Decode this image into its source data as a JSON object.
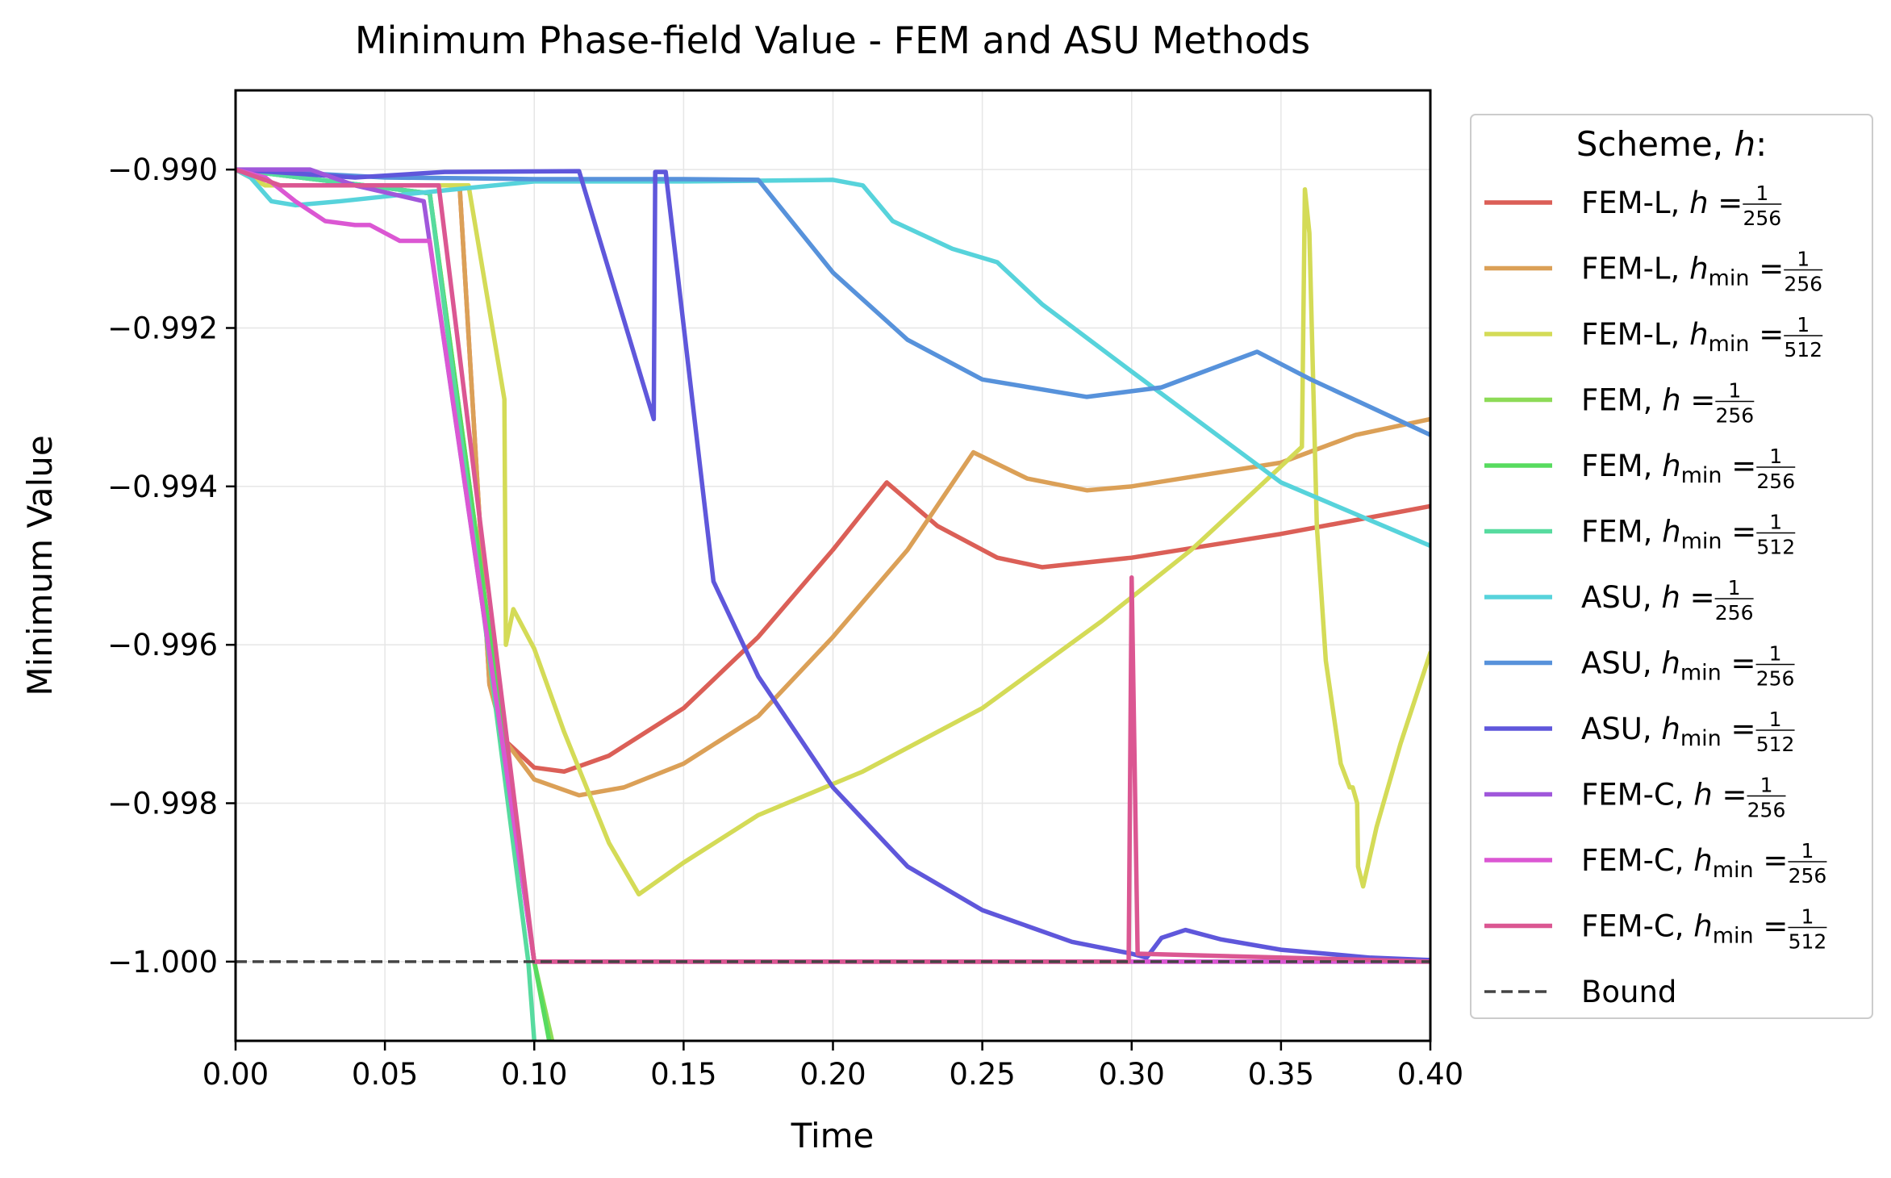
{
  "chart_data": {
    "type": "line",
    "title": "Minimum Phase-field Value - FEM and ASU Methods",
    "xlabel": "Time",
    "ylabel": "Minimum Value",
    "xlim": [
      0.0,
      0.4
    ],
    "ylim": [
      -1.001,
      -0.989
    ],
    "grid": true,
    "x_ticks": [
      0.0,
      0.05,
      0.1,
      0.15,
      0.2,
      0.25,
      0.3,
      0.35,
      0.4
    ],
    "x_tick_labels": [
      "0.00",
      "0.05",
      "0.10",
      "0.15",
      "0.20",
      "0.25",
      "0.30",
      "0.35",
      "0.40"
    ],
    "y_ticks": [
      -0.99,
      -0.992,
      -0.994,
      -0.996,
      -0.998,
      -1.0
    ],
    "y_tick_labels": [
      "−0.990",
      "−0.992",
      "−0.994",
      "−0.996",
      "−0.998",
      "−1.000"
    ],
    "legend": {
      "title_text": "Scheme, ",
      "title_math": "h",
      "title_suffix": ":",
      "placement": "outside-right",
      "bound_label": "Bound"
    },
    "bound": {
      "y": -1.0,
      "color": "#444444",
      "style": "dashed"
    },
    "series": [
      {
        "name": "FEM-L, h = 1/256",
        "scheme": "FEM-L",
        "hvar": "h",
        "sub": "",
        "num": "1",
        "den": "256",
        "color": "#db5f57",
        "points": [
          [
            0,
            -0.99
          ],
          [
            0.01,
            -0.9902
          ],
          [
            0.06,
            -0.9902
          ],
          [
            0.075,
            -0.9902
          ],
          [
            0.085,
            -0.9965
          ],
          [
            0.09,
            -0.9972
          ],
          [
            0.1,
            -0.99755
          ],
          [
            0.11,
            -0.9976
          ],
          [
            0.125,
            -0.9974
          ],
          [
            0.15,
            -0.9968
          ],
          [
            0.175,
            -0.9959
          ],
          [
            0.2,
            -0.9948
          ],
          [
            0.218,
            -0.99395
          ],
          [
            0.235,
            -0.9945
          ],
          [
            0.255,
            -0.9949
          ],
          [
            0.27,
            -0.99502
          ],
          [
            0.3,
            -0.9949
          ],
          [
            0.35,
            -0.9946
          ],
          [
            0.4,
            -0.99425
          ]
        ]
      },
      {
        "name": "FEM-L, h_min = 1/256",
        "scheme": "FEM-L",
        "hvar": "h",
        "sub": "min",
        "num": "1",
        "den": "256",
        "color": "#dba057",
        "points": [
          [
            0,
            -0.99
          ],
          [
            0.01,
            -0.9902
          ],
          [
            0.06,
            -0.9902
          ],
          [
            0.075,
            -0.9902
          ],
          [
            0.085,
            -0.9965
          ],
          [
            0.09,
            -0.9972
          ],
          [
            0.1,
            -0.9977
          ],
          [
            0.115,
            -0.9979
          ],
          [
            0.13,
            -0.9978
          ],
          [
            0.15,
            -0.9975
          ],
          [
            0.175,
            -0.9969
          ],
          [
            0.2,
            -0.9959
          ],
          [
            0.225,
            -0.9948
          ],
          [
            0.247,
            -0.99357
          ],
          [
            0.265,
            -0.9939
          ],
          [
            0.285,
            -0.99405
          ],
          [
            0.3,
            -0.994
          ],
          [
            0.35,
            -0.9937
          ],
          [
            0.375,
            -0.99335
          ],
          [
            0.4,
            -0.99315
          ]
        ]
      },
      {
        "name": "FEM-L, h_min = 1/512",
        "scheme": "FEM-L",
        "hvar": "h",
        "sub": "min",
        "num": "1",
        "den": "512",
        "color": "#d4db57",
        "points": [
          [
            0,
            -0.99
          ],
          [
            0.01,
            -0.9902
          ],
          [
            0.05,
            -0.9902
          ],
          [
            0.078,
            -0.9902
          ],
          [
            0.09,
            -0.9929
          ],
          [
            0.0905,
            -0.996
          ],
          [
            0.093,
            -0.99555
          ],
          [
            0.1,
            -0.99605
          ],
          [
            0.11,
            -0.9971
          ],
          [
            0.125,
            -0.9985
          ],
          [
            0.135,
            -0.99915
          ],
          [
            0.15,
            -0.99875
          ],
          [
            0.175,
            -0.99815
          ],
          [
            0.21,
            -0.9976
          ],
          [
            0.25,
            -0.9968
          ],
          [
            0.29,
            -0.9957
          ],
          [
            0.32,
            -0.9948
          ],
          [
            0.34,
            -0.9941
          ],
          [
            0.357,
            -0.9935
          ],
          [
            0.358,
            -0.99025
          ],
          [
            0.3595,
            -0.9908
          ],
          [
            0.362,
            -0.9945
          ],
          [
            0.365,
            -0.9962
          ],
          [
            0.37,
            -0.9975
          ],
          [
            0.373,
            -0.9978
          ],
          [
            0.374,
            -0.9978
          ],
          [
            0.3755,
            -0.998
          ],
          [
            0.3758,
            -0.9988
          ],
          [
            0.3775,
            -0.99905
          ],
          [
            0.382,
            -0.9983
          ],
          [
            0.39,
            -0.99725
          ],
          [
            0.4,
            -0.9961
          ]
        ]
      },
      {
        "name": "FEM, h = 1/256",
        "scheme": "FEM",
        "hvar": "h",
        "sub": "",
        "num": "1",
        "den": "256",
        "color": "#8ddb57",
        "points": [
          [
            0,
            -0.99
          ],
          [
            0.065,
            -0.9903
          ],
          [
            0.1,
            -1.0
          ],
          [
            0.106,
            -1.001
          ]
        ]
      },
      {
        "name": "FEM, h_min = 1/256",
        "scheme": "FEM",
        "hvar": "h",
        "sub": "min",
        "num": "1",
        "den": "256",
        "color": "#57db5f",
        "points": [
          [
            0,
            -0.99
          ],
          [
            0.065,
            -0.9903
          ],
          [
            0.1,
            -1.0
          ],
          [
            0.105,
            -1.001
          ]
        ]
      },
      {
        "name": "FEM, h_min = 1/512",
        "scheme": "FEM",
        "hvar": "h",
        "sub": "min",
        "num": "1",
        "den": "512",
        "color": "#57db9f",
        "points": [
          [
            0,
            -0.99
          ],
          [
            0.065,
            -0.9903
          ],
          [
            0.098,
            -1.0
          ],
          [
            0.1,
            -1.001
          ]
        ]
      },
      {
        "name": "ASU, h = 1/256",
        "scheme": "ASU",
        "hvar": "h",
        "sub": "",
        "num": "1",
        "den": "256",
        "color": "#57d3db",
        "points": [
          [
            0,
            -0.99
          ],
          [
            0.005,
            -0.9901
          ],
          [
            0.012,
            -0.9904
          ],
          [
            0.02,
            -0.99045
          ],
          [
            0.035,
            -0.9904
          ],
          [
            0.06,
            -0.9903
          ],
          [
            0.1,
            -0.99015
          ],
          [
            0.15,
            -0.99015
          ],
          [
            0.2,
            -0.99013
          ],
          [
            0.21,
            -0.9902
          ],
          [
            0.22,
            -0.99065
          ],
          [
            0.24,
            -0.991
          ],
          [
            0.255,
            -0.99117
          ],
          [
            0.27,
            -0.9917
          ],
          [
            0.3,
            -0.99255
          ],
          [
            0.35,
            -0.99395
          ],
          [
            0.4,
            -0.99475
          ]
        ]
      },
      {
        "name": "ASU, h_min = 1/256",
        "scheme": "ASU",
        "hvar": "h",
        "sub": "min",
        "num": "1",
        "den": "256",
        "color": "#5792db",
        "points": [
          [
            0,
            -0.99
          ],
          [
            0.05,
            -0.9901
          ],
          [
            0.1,
            -0.99012
          ],
          [
            0.15,
            -0.99012
          ],
          [
            0.175,
            -0.99013
          ],
          [
            0.2,
            -0.9913
          ],
          [
            0.225,
            -0.99215
          ],
          [
            0.25,
            -0.99265
          ],
          [
            0.285,
            -0.99287
          ],
          [
            0.31,
            -0.99275
          ],
          [
            0.342,
            -0.9923
          ],
          [
            0.36,
            -0.99265
          ],
          [
            0.38,
            -0.993
          ],
          [
            0.4,
            -0.99335
          ]
        ]
      },
      {
        "name": "ASU, h_min = 1/512",
        "scheme": "ASU",
        "hvar": "h",
        "sub": "min",
        "num": "1",
        "den": "512",
        "color": "#5f57db",
        "points": [
          [
            0,
            -0.99
          ],
          [
            0.04,
            -0.9901
          ],
          [
            0.07,
            -0.99003
          ],
          [
            0.115,
            -0.99002
          ],
          [
            0.14,
            -0.99315
          ],
          [
            0.1405,
            -0.99003
          ],
          [
            0.144,
            -0.99003
          ],
          [
            0.16,
            -0.9952
          ],
          [
            0.175,
            -0.9964
          ],
          [
            0.2,
            -0.9978
          ],
          [
            0.225,
            -0.9988
          ],
          [
            0.25,
            -0.99935
          ],
          [
            0.28,
            -0.99975
          ],
          [
            0.3,
            -0.9999
          ],
          [
            0.305,
            -0.99995
          ],
          [
            0.31,
            -0.9997
          ],
          [
            0.318,
            -0.9996
          ],
          [
            0.33,
            -0.99972
          ],
          [
            0.35,
            -0.99985
          ],
          [
            0.38,
            -0.99995
          ],
          [
            0.4,
            -0.99998
          ]
        ]
      },
      {
        "name": "FEM-C, h = 1/256",
        "scheme": "FEM-C",
        "hvar": "h",
        "sub": "",
        "num": "1",
        "den": "256",
        "color": "#a057db",
        "points": [
          [
            0,
            -0.99
          ],
          [
            0.025,
            -0.99
          ],
          [
            0.04,
            -0.9902
          ],
          [
            0.063,
            -0.9904
          ],
          [
            0.1,
            -1.0
          ],
          [
            0.4,
            -1.0
          ]
        ]
      },
      {
        "name": "FEM-C, h_min = 1/256",
        "scheme": "FEM-C",
        "hvar": "h",
        "sub": "min",
        "num": "1",
        "den": "256",
        "color": "#db57d3",
        "points": [
          [
            0,
            -0.99
          ],
          [
            0.01,
            -0.9901
          ],
          [
            0.02,
            -0.9904
          ],
          [
            0.03,
            -0.99065
          ],
          [
            0.04,
            -0.9907
          ],
          [
            0.045,
            -0.9907
          ],
          [
            0.055,
            -0.9909
          ],
          [
            0.065,
            -0.9909
          ],
          [
            0.1,
            -1.0
          ],
          [
            0.4,
            -1.0
          ]
        ]
      },
      {
        "name": "FEM-C, h_min = 1/512",
        "scheme": "FEM-C",
        "hvar": "h",
        "sub": "min",
        "num": "1",
        "den": "512",
        "color": "#db5792",
        "points": [
          [
            0,
            -0.99
          ],
          [
            0.015,
            -0.9902
          ],
          [
            0.068,
            -0.9902
          ],
          [
            0.1,
            -1.0
          ],
          [
            0.299,
            -1.0
          ],
          [
            0.3,
            -0.99515
          ],
          [
            0.302,
            -0.9999
          ],
          [
            0.4,
            -1.0
          ]
        ]
      }
    ]
  }
}
